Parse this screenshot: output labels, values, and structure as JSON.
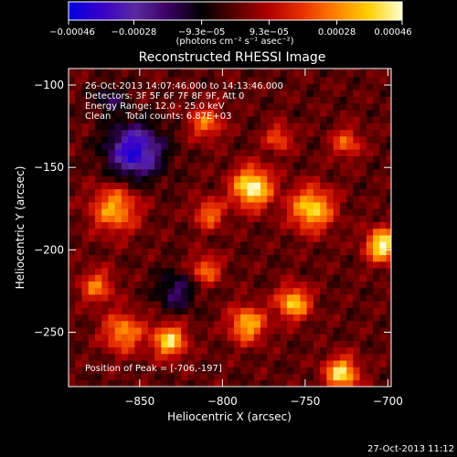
{
  "chart_data": {
    "type": "heatmap",
    "title": "Reconstructed RHESSI Image",
    "xlabel": "Heliocentric X (arcsec)",
    "ylabel": "Heliocentric Y (arcsec)",
    "xlim": [
      -893,
      -698
    ],
    "ylim": [
      -283,
      -90
    ],
    "x_ticks": [
      -850,
      -800,
      -750,
      -700
    ],
    "x_tick_labels": [
      "−850",
      "−800",
      "−750",
      "−700"
    ],
    "y_ticks": [
      -100,
      -150,
      -200,
      -250
    ],
    "y_tick_labels": [
      "−100",
      "−150",
      "−200",
      "−250"
    ],
    "colorbar": {
      "min": -0.00046,
      "max": 0.00046,
      "ticks": [
        -0.00046,
        -0.00028,
        -9.3e-05,
        9.3e-05,
        0.00028,
        0.00046
      ],
      "tick_labels": [
        "−0.00046",
        "−0.00028",
        "−9.3e−05",
        "9.3e−05",
        "0.00028",
        "0.00046"
      ],
      "units_label": "(photons cm⁻² s⁻¹ asec⁻²)",
      "colors": [
        "#0000e0",
        "#3a00c8",
        "#5a2aa0",
        "#3a0060",
        "#000000",
        "#5a0000",
        "#b00000",
        "#e83000",
        "#ff8000",
        "#ffd000",
        "#ffffd0"
      ]
    },
    "annotations": [
      "26-Oct-2013 14:07:46.000 to 14:13:46.000",
      "Detectors: 3F 5F 6F 7F 8F 9F, Att 0",
      "Energy Range: 12.0 - 25.0 keV",
      "Clean     Total counts: 6.87E+03",
      "Position of Peak = [-706,-197]"
    ],
    "peak": {
      "x": -706,
      "y": -197
    },
    "grid": false
  },
  "footer": {
    "timestamp": "27-Oct-2013 11:12"
  }
}
